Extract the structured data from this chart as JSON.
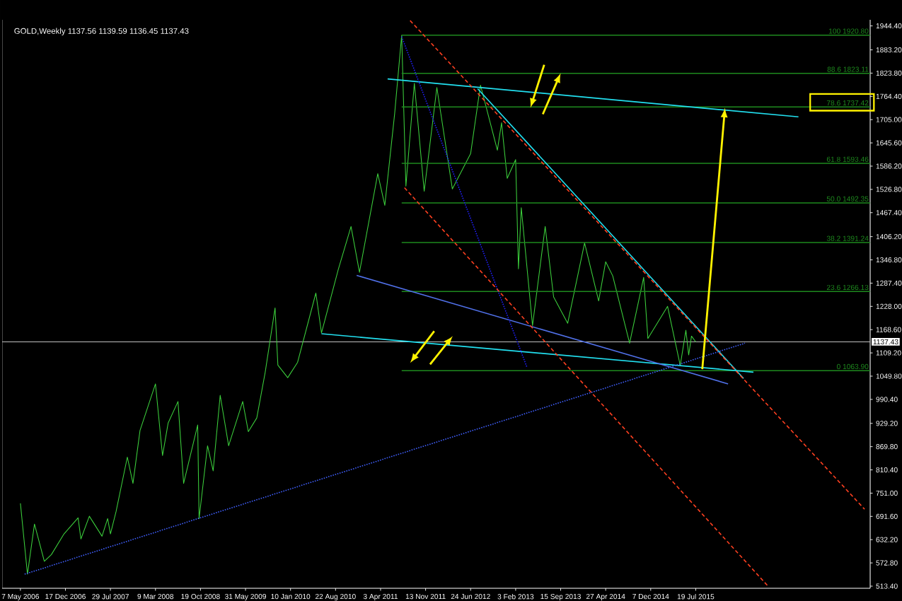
{
  "chart_data": {
    "type": "line",
    "title": "GOLD,Weekly  1137.56 1139.59 1136.45 1137.43",
    "xlim": [
      "2006-02-05",
      "2017-12-03"
    ],
    "ylim": [
      508,
      1960
    ],
    "xticks": [
      {
        "value": "2006-05-07",
        "label": "7 May 2006"
      },
      {
        "value": "2006-12-17",
        "label": "17 Dec 2006"
      },
      {
        "value": "2007-07-29",
        "label": "29 Jul 2007"
      },
      {
        "value": "2008-03-09",
        "label": "9 Mar 2008"
      },
      {
        "value": "2008-10-19",
        "label": "19 Oct 2008"
      },
      {
        "value": "2009-05-31",
        "label": "31 May 2009"
      },
      {
        "value": "2010-01-10",
        "label": "10 Jan 2010"
      },
      {
        "value": "2010-08-22",
        "label": "22 Aug 2010"
      },
      {
        "value": "2011-04-03",
        "label": "3 Apr 2011"
      },
      {
        "value": "2011-11-13",
        "label": "13 Nov 2011"
      },
      {
        "value": "2012-06-24",
        "label": "24 Jun 2012"
      },
      {
        "value": "2013-02-03",
        "label": "3 Feb 2013"
      },
      {
        "value": "2013-09-15",
        "label": "15 Sep 2013"
      },
      {
        "value": "2014-04-27",
        "label": "27 Apr 2014"
      },
      {
        "value": "2014-12-07",
        "label": "7 Dec 2014"
      },
      {
        "value": "2015-07-19",
        "label": "19 Jul 2015"
      }
    ],
    "yticks": [
      {
        "value": 513.4,
        "label": "513.40"
      },
      {
        "value": 572.8,
        "label": "572.80"
      },
      {
        "value": 632.2,
        "label": "632.20"
      },
      {
        "value": 691.6,
        "label": "691.60"
      },
      {
        "value": 751.0,
        "label": "751.00"
      },
      {
        "value": 810.4,
        "label": "810.40"
      },
      {
        "value": 869.8,
        "label": "869.80"
      },
      {
        "value": 929.2,
        "label": "929.20"
      },
      {
        "value": 990.4,
        "label": "990.40"
      },
      {
        "value": 1049.8,
        "label": "1049.80"
      },
      {
        "value": 1109.2,
        "label": "1109.20"
      },
      {
        "value": 1168.6,
        "label": "1168.60"
      },
      {
        "value": 1228.0,
        "label": "1228.00"
      },
      {
        "value": 1287.4,
        "label": "1287.40"
      },
      {
        "value": 1346.8,
        "label": "1346.80"
      },
      {
        "value": 1406.2,
        "label": "1406.20"
      },
      {
        "value": 1467.4,
        "label": "1467.40"
      },
      {
        "value": 1526.8,
        "label": "1526.80"
      },
      {
        "value": 1586.2,
        "label": "1586.20"
      },
      {
        "value": 1645.6,
        "label": "1645.60"
      },
      {
        "value": 1705.0,
        "label": "1705.00"
      },
      {
        "value": 1764.4,
        "label": "1764.40"
      },
      {
        "value": 1823.8,
        "label": "1823.80"
      },
      {
        "value": 1883.2,
        "label": "1883.20"
      },
      {
        "value": 1944.4,
        "label": "1944.40"
      }
    ],
    "ref_lines": [
      {
        "axis": "y",
        "value": 1137.43,
        "label": "1137.43",
        "color": "#c0c0c0"
      }
    ],
    "series": [
      {
        "color": "#3ccf3c",
        "x": [
          "2006-05-07",
          "2006-06-11",
          "2006-07-16",
          "2006-09-03",
          "2006-10-08",
          "2006-12-10",
          "2007-02-18",
          "2007-03-04",
          "2007-04-15",
          "2007-06-17",
          "2007-07-15",
          "2007-07-29",
          "2007-08-26",
          "2007-10-21",
          "2007-11-18",
          "2007-12-23",
          "2008-03-09",
          "2008-04-13",
          "2008-05-11",
          "2008-06-29",
          "2008-07-27",
          "2008-10-05",
          "2008-10-12",
          "2008-11-23",
          "2008-12-21",
          "2009-01-25",
          "2009-03-08",
          "2009-05-17",
          "2009-06-14",
          "2009-07-26",
          "2009-09-06",
          "2009-10-25",
          "2009-11-08",
          "2009-12-27",
          "2010-02-14",
          "2010-05-16",
          "2010-06-13",
          "2010-09-05",
          "2010-11-07",
          "2010-12-19",
          "2011-03-20",
          "2011-04-24",
          "2011-06-12",
          "2011-07-17",
          "2011-08-07",
          "2011-09-18",
          "2011-11-06",
          "2012-01-08",
          "2012-03-25",
          "2012-06-24",
          "2012-08-12",
          "2012-11-04",
          "2012-11-25",
          "2012-12-23",
          "2013-02-03",
          "2013-02-17",
          "2013-03-03",
          "2013-04-28",
          "2013-06-30",
          "2013-08-11",
          "2013-10-20",
          "2014-01-12",
          "2014-03-23",
          "2014-04-27",
          "2014-06-01",
          "2014-08-24",
          "2014-11-02",
          "2014-11-23",
          "2015-03-01",
          "2015-05-03",
          "2015-05-31",
          "2015-06-14",
          "2015-06-28",
          "2015-07-19"
        ],
        "values": [
          725,
          544,
          672,
          577,
          594,
          647,
          688,
          634,
          692,
          641,
          686,
          647,
          704,
          843,
          776,
          911,
          1030,
          847,
          930,
          985,
          776,
          925,
          686,
          872,
          808,
          1001,
          872,
          985,
          908,
          943,
          1060,
          1224,
          1078,
          1046,
          1085,
          1262,
          1160,
          1323,
          1432,
          1315,
          1567,
          1486,
          1720,
          1920.8,
          1535,
          1798,
          1522,
          1787,
          1528,
          1618,
          1793,
          1627,
          1697,
          1555,
          1603,
          1324,
          1480,
          1179,
          1432,
          1252,
          1185,
          1390,
          1242,
          1342,
          1306,
          1134,
          1302,
          1146,
          1228,
          1077,
          1167,
          1104,
          1152,
          1137.43
        ]
      },
      {
        "name": "100 1920.80",
        "color": "#1e8a1e",
        "x": [
          "2011-07-17",
          "2017-12-03"
        ],
        "values": [
          1920.8,
          1920.8
        ]
      },
      {
        "name": "88.6 1823.11",
        "color": "#1e8a1e",
        "x": [
          "2011-07-17",
          "2017-12-03"
        ],
        "values": [
          1823.11,
          1823.11
        ]
      },
      {
        "name": "78.6 1737.42",
        "color": "#1e8a1e",
        "x": [
          "2011-07-17",
          "2017-12-03"
        ],
        "values": [
          1737.42,
          1737.42
        ]
      },
      {
        "name": "61.8 1593.46",
        "color": "#1e8a1e",
        "x": [
          "2011-07-17",
          "2017-12-03"
        ],
        "values": [
          1593.46,
          1593.46
        ]
      },
      {
        "name": "50.0 1492.35",
        "color": "#1e8a1e",
        "x": [
          "2011-07-17",
          "2017-12-03"
        ],
        "values": [
          1492.35,
          1492.35
        ]
      },
      {
        "name": "38.2 1391.24",
        "color": "#1e8a1e",
        "x": [
          "2011-07-17",
          "2017-12-03"
        ],
        "values": [
          1391.24,
          1391.24
        ]
      },
      {
        "name": "23.6 1266.13",
        "color": "#1e8a1e",
        "x": [
          "2011-07-17",
          "2017-12-03"
        ],
        "values": [
          1266.13,
          1266.13
        ]
      },
      {
        "name": "0 1063.90",
        "color": "#1e8a1e",
        "x": [
          "2011-07-17",
          "2017-12-03"
        ],
        "values": [
          1063.9,
          1063.9
        ]
      },
      {
        "color": "#22e0f0",
        "x": [
          "2011-05-08",
          "2016-12-11"
        ],
        "values": [
          1809,
          1712
        ]
      },
      {
        "color": "#22e0f0",
        "x": [
          "2010-06-13",
          "2016-05-01"
        ],
        "values": [
          1158,
          1060
        ]
      },
      {
        "color": "#22e0f0",
        "x": [
          "2012-07-29",
          "2016-03-13"
        ],
        "values": [
          1784,
          1044
        ]
      },
      {
        "color": "#5070e8",
        "x": [
          "2010-12-05",
          "2015-12-27"
        ],
        "values": [
          1307,
          1030
        ]
      },
      {
        "color": "#4060ff",
        "line_style": "dotted",
        "x": [
          "2006-05-28",
          "2016-03-20"
        ],
        "values": [
          544,
          1134
        ]
      },
      {
        "color": "#2020ff",
        "line_style": "dotted",
        "x": [
          "2011-07-17",
          "2013-03-31"
        ],
        "values": [
          1917,
          1073
        ]
      },
      {
        "color": "#ff4020",
        "line_style": "dashed",
        "x": [
          "2011-08-28",
          "2017-11-05"
        ],
        "values": [
          1958,
          710
        ]
      },
      {
        "color": "#ff4020",
        "line_style": "dashed",
        "x": [
          "2011-07-31",
          "2016-07-10"
        ],
        "values": [
          1531,
          515
        ]
      }
    ]
  }
}
